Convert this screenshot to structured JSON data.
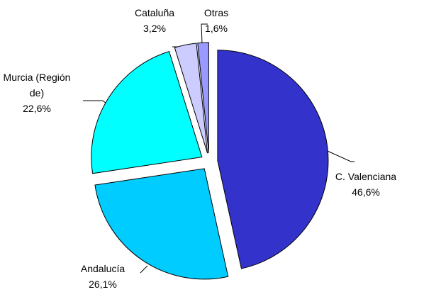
{
  "chart_data": {
    "type": "pie",
    "categories": [
      "C. Valenciana",
      "Andalucía",
      "Murcia (Región de)",
      "Cataluña",
      "Otras"
    ],
    "values": [
      46.6,
      26.1,
      22.6,
      3.2,
      1.6
    ],
    "value_labels": [
      "46,6%",
      "26,1%",
      "22,6%",
      "3,2%",
      "1,6%"
    ],
    "colors": [
      "#3333cc",
      "#00ccff",
      "#00ffff",
      "#ccccff",
      "#9999ff"
    ],
    "exploded": true
  }
}
